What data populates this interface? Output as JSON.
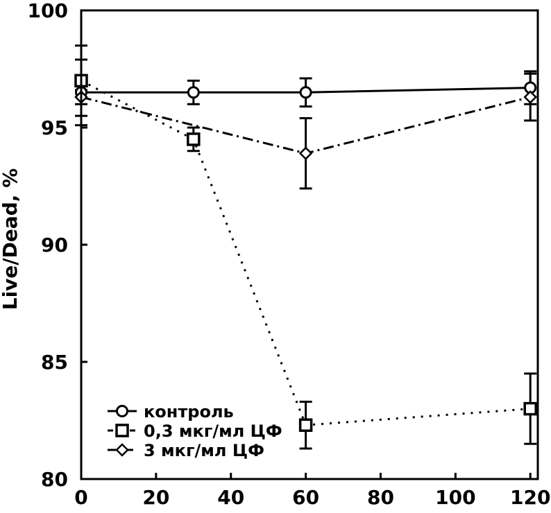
{
  "figure": {
    "background_color": "#ffffff",
    "ink_color": "#000000"
  },
  "chart_data": {
    "type": "line",
    "title": "",
    "xlabel": "",
    "ylabel": "Live/Dead, %",
    "xlim": [
      0,
      122
    ],
    "ylim": [
      80,
      100
    ],
    "x_ticks": [
      0,
      20,
      40,
      60,
      80,
      100,
      120
    ],
    "y_ticks": [
      80,
      85,
      90,
      95,
      100
    ],
    "grid": false,
    "legend_position": "lower-left",
    "series": [
      {
        "name": "контроль",
        "marker": "circle",
        "line_style": "solid",
        "x": [
          0,
          30,
          60,
          120
        ],
        "y": [
          96.5,
          96.5,
          96.5,
          96.7
        ],
        "yerr": [
          1.4,
          0.5,
          0.6,
          0.7
        ]
      },
      {
        "name": "0,3 мкг/мл ЦФ",
        "marker": "square",
        "line_style": "dotted",
        "x": [
          0,
          30,
          60,
          120
        ],
        "y": [
          97.0,
          94.5,
          82.3,
          83.0
        ],
        "yerr": [
          1.5,
          0.5,
          1.0,
          1.5
        ]
      },
      {
        "name": "3 мкг/мл ЦФ",
        "marker": "diamond",
        "line_style": "dashdot",
        "x": [
          0,
          60,
          120
        ],
        "y": [
          96.3,
          93.9,
          96.3
        ],
        "yerr": [
          0.3,
          1.5,
          1.0
        ]
      }
    ]
  }
}
